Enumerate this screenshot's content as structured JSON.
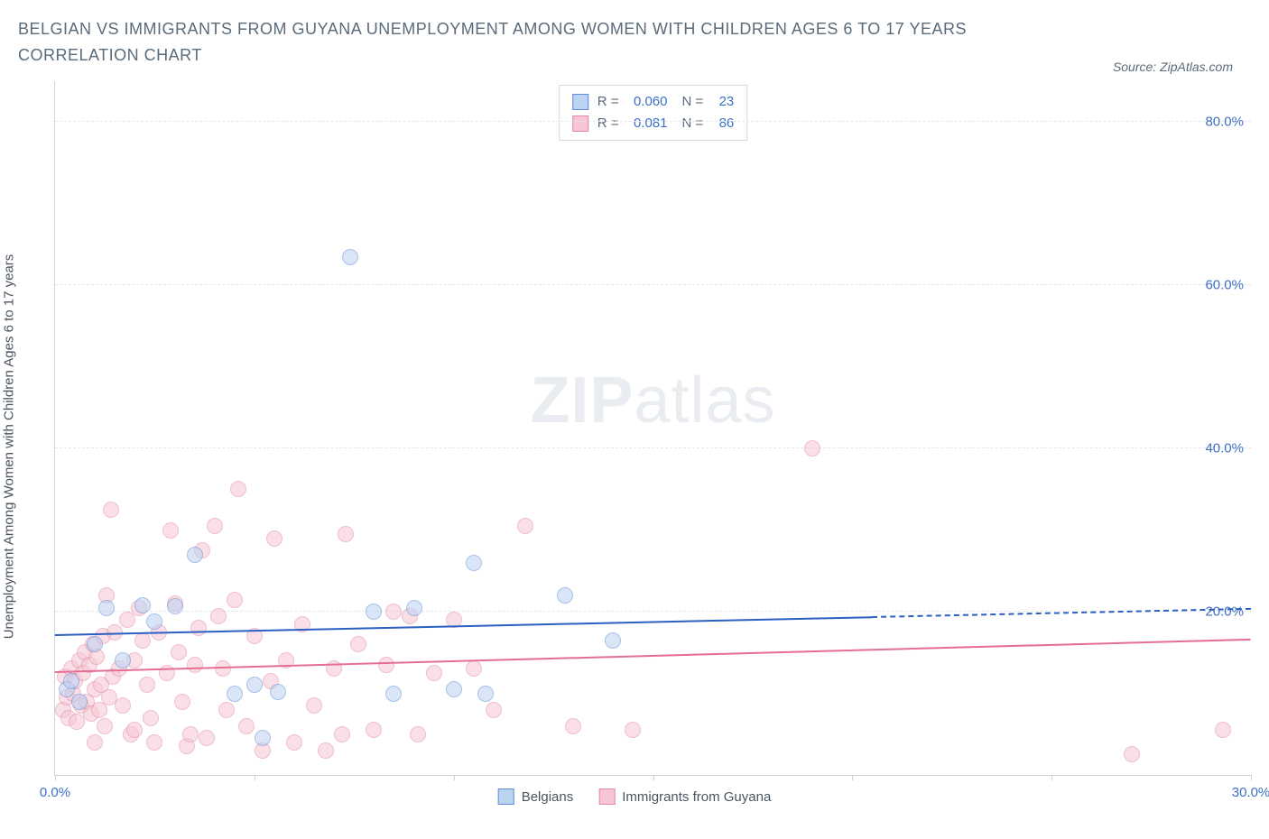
{
  "header": {
    "title": "BELGIAN VS IMMIGRANTS FROM GUYANA UNEMPLOYMENT AMONG WOMEN WITH CHILDREN AGES 6 TO 17 YEARS CORRELATION CHART",
    "source": "Source: ZipAtlas.com"
  },
  "watermark": {
    "part1": "ZIP",
    "part2": "atlas"
  },
  "chart": {
    "type": "scatter",
    "ylabel": "Unemployment Among Women with Children Ages 6 to 17 years",
    "background_color": "#ffffff",
    "grid_color": "#e4e7eb",
    "axis_color": "#ccd3db",
    "tick_label_color": "#3d6fc5",
    "xlim": [
      0,
      30
    ],
    "ylim": [
      0,
      85
    ],
    "xticks": [
      0,
      5,
      10,
      15,
      20,
      25,
      30
    ],
    "xtick_labels": {
      "0": "0.0%",
      "30": "30.0%"
    },
    "yticks": [
      20,
      40,
      60,
      80
    ],
    "ytick_labels": {
      "20": "20.0%",
      "40": "40.0%",
      "60": "60.0%",
      "80": "80.0%"
    },
    "marker_radius": 9,
    "marker_opacity": 0.55,
    "line_width": 2.5,
    "series": [
      {
        "key": "belgians",
        "label": "Belgians",
        "fill": "#bcd3f2",
        "stroke": "#5e8fd6",
        "line_color": "#2b5fc1",
        "r_value": "0.060",
        "n_value": "23",
        "trend": {
          "x1": 0,
          "y1": 17.0,
          "x2": 30,
          "y2": 20.2,
          "solid_until_x": 20.5
        },
        "points": [
          [
            0.3,
            10.5
          ],
          [
            0.4,
            11.5
          ],
          [
            0.6,
            9.0
          ],
          [
            1.0,
            16.0
          ],
          [
            1.3,
            20.5
          ],
          [
            1.7,
            14.0
          ],
          [
            2.2,
            20.8
          ],
          [
            2.5,
            18.8
          ],
          [
            3.0,
            20.7
          ],
          [
            3.5,
            27.0
          ],
          [
            4.5,
            10.0
          ],
          [
            5.0,
            11.0
          ],
          [
            5.2,
            4.5
          ],
          [
            5.6,
            10.2
          ],
          [
            7.4,
            63.5
          ],
          [
            8.0,
            20.0
          ],
          [
            8.5,
            10.0
          ],
          [
            9.0,
            20.4
          ],
          [
            10.0,
            10.5
          ],
          [
            10.5,
            26.0
          ],
          [
            12.8,
            22.0
          ],
          [
            14.0,
            16.5
          ],
          [
            10.8,
            10.0
          ]
        ]
      },
      {
        "key": "guyana",
        "label": "Immigrants from Guyana",
        "fill": "#f6c6d4",
        "stroke": "#e28aa3",
        "line_color": "#e56f93",
        "r_value": "0.081",
        "n_value": "86",
        "trend": {
          "x1": 0,
          "y1": 12.5,
          "x2": 30,
          "y2": 16.5,
          "solid_until_x": 30
        },
        "points": [
          [
            0.2,
            8.0
          ],
          [
            0.25,
            12.0
          ],
          [
            0.3,
            9.5
          ],
          [
            0.35,
            7.0
          ],
          [
            0.4,
            13.0
          ],
          [
            0.45,
            10.0
          ],
          [
            0.5,
            11.5
          ],
          [
            0.55,
            6.5
          ],
          [
            0.6,
            14.0
          ],
          [
            0.65,
            8.5
          ],
          [
            0.7,
            12.5
          ],
          [
            0.75,
            15.0
          ],
          [
            0.8,
            9.0
          ],
          [
            0.85,
            13.5
          ],
          [
            0.9,
            7.5
          ],
          [
            0.95,
            16.0
          ],
          [
            1.0,
            10.5
          ],
          [
            1.05,
            14.5
          ],
          [
            1.1,
            8.0
          ],
          [
            1.15,
            11.0
          ],
          [
            1.2,
            17.0
          ],
          [
            1.25,
            6.0
          ],
          [
            1.3,
            22.0
          ],
          [
            1.35,
            9.5
          ],
          [
            1.4,
            32.5
          ],
          [
            1.45,
            12.0
          ],
          [
            1.5,
            17.5
          ],
          [
            1.6,
            13.0
          ],
          [
            1.7,
            8.5
          ],
          [
            1.8,
            19.0
          ],
          [
            1.9,
            5.0
          ],
          [
            2.0,
            14.0
          ],
          [
            2.1,
            20.5
          ],
          [
            2.2,
            16.5
          ],
          [
            2.3,
            11.0
          ],
          [
            2.4,
            7.0
          ],
          [
            2.5,
            4.0
          ],
          [
            2.6,
            17.5
          ],
          [
            2.8,
            12.5
          ],
          [
            2.9,
            30.0
          ],
          [
            3.0,
            21.0
          ],
          [
            3.1,
            15.0
          ],
          [
            3.2,
            9.0
          ],
          [
            3.3,
            3.5
          ],
          [
            3.5,
            13.5
          ],
          [
            3.6,
            18.0
          ],
          [
            3.7,
            27.5
          ],
          [
            3.8,
            4.5
          ],
          [
            4.0,
            30.5
          ],
          [
            4.1,
            19.5
          ],
          [
            4.3,
            8.0
          ],
          [
            4.5,
            21.5
          ],
          [
            4.6,
            35.0
          ],
          [
            4.8,
            6.0
          ],
          [
            5.0,
            17.0
          ],
          [
            5.2,
            3.0
          ],
          [
            5.4,
            11.5
          ],
          [
            5.5,
            29.0
          ],
          [
            5.8,
            14.0
          ],
          [
            6.0,
            4.0
          ],
          [
            6.2,
            18.5
          ],
          [
            6.5,
            8.5
          ],
          [
            6.8,
            3.0
          ],
          [
            7.0,
            13.0
          ],
          [
            7.2,
            5.0
          ],
          [
            7.3,
            29.5
          ],
          [
            7.6,
            16.0
          ],
          [
            8.0,
            5.5
          ],
          [
            8.3,
            13.5
          ],
          [
            8.5,
            20.0
          ],
          [
            8.9,
            19.5
          ],
          [
            9.1,
            5.0
          ],
          [
            9.5,
            12.5
          ],
          [
            10.0,
            19.0
          ],
          [
            10.5,
            13.0
          ],
          [
            11.0,
            8.0
          ],
          [
            11.8,
            30.5
          ],
          [
            13.0,
            6.0
          ],
          [
            14.5,
            5.5
          ],
          [
            19.0,
            40.0
          ],
          [
            27.0,
            2.5
          ],
          [
            29.3,
            5.5
          ],
          [
            1.0,
            4.0
          ],
          [
            2.0,
            5.5
          ],
          [
            3.4,
            5.0
          ],
          [
            4.2,
            13.0
          ]
        ]
      }
    ],
    "bottom_legend": [
      {
        "label": "Belgians",
        "fill": "#bcd3f2",
        "stroke": "#5e8fd6"
      },
      {
        "label": "Immigrants from Guyana",
        "fill": "#f6c6d4",
        "stroke": "#e28aa3"
      }
    ]
  }
}
